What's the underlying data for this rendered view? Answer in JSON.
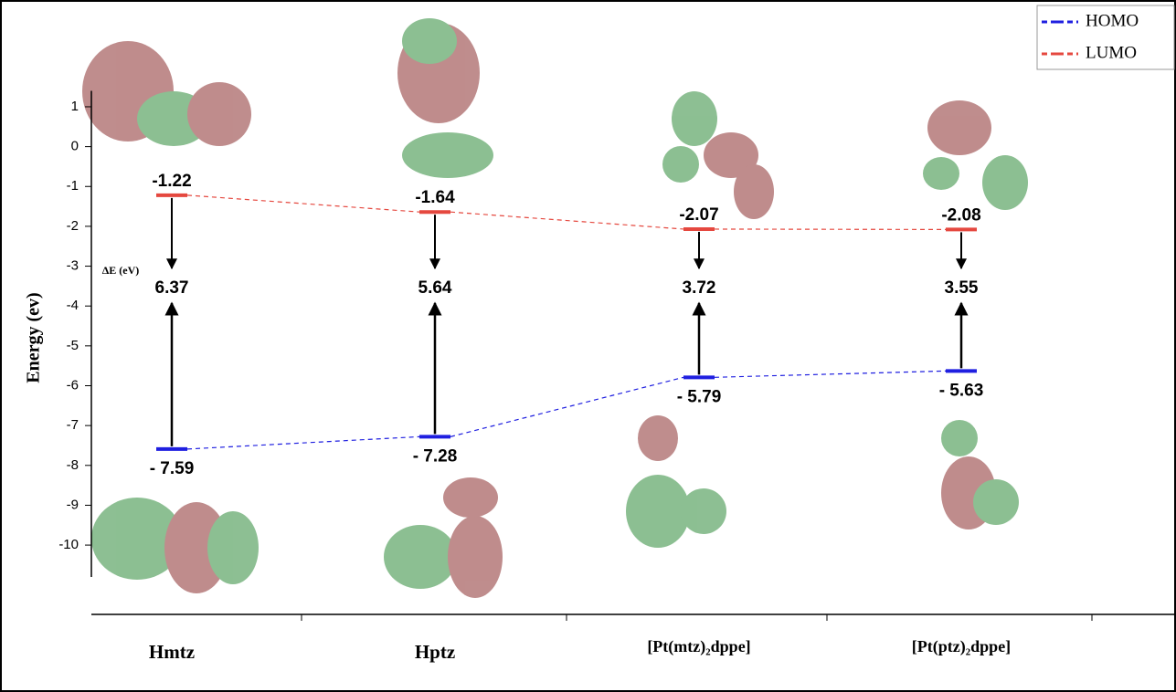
{
  "chart_data": {
    "type": "energy-level",
    "y_label": "Energy (ev)",
    "gap_label": "ΔE (eV)",
    "categories": [
      "Hmtz",
      "Hptz",
      "[Pt(mtz)₂dppe]",
      "[Pt(ptz)₂dppe]"
    ],
    "series": [
      {
        "name": "HOMO",
        "color": "#1f1fe0",
        "values": [
          -7.59,
          -7.28,
          -5.79,
          -5.63
        ],
        "value_labels": [
          "- 7.59",
          "- 7.28",
          "- 5.79",
          "- 5.63"
        ]
      },
      {
        "name": "LUMO",
        "color": "#e5483f",
        "values": [
          -1.22,
          -1.64,
          -2.07,
          -2.08
        ]
      }
    ],
    "gap_values": [
      6.37,
      5.64,
      3.72,
      3.55
    ],
    "ylim": [
      -10.8,
      1.4
    ],
    "yticks": [
      1,
      0,
      -1,
      -2,
      -3,
      -4,
      -5,
      -6,
      -7,
      -8,
      -9,
      -10
    ],
    "legend": "upper right"
  }
}
